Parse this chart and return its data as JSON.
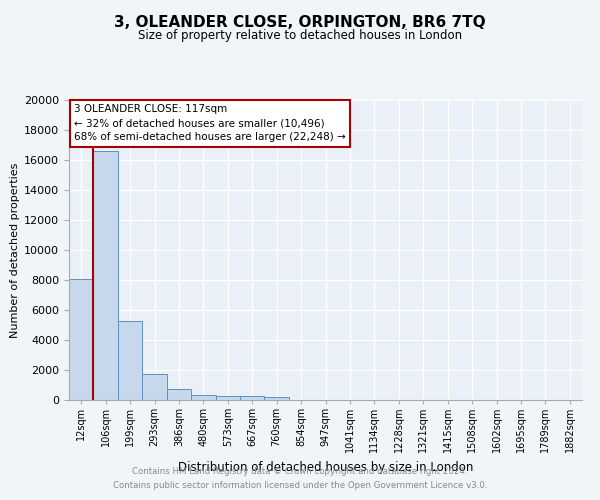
{
  "title": "3, OLEANDER CLOSE, ORPINGTON, BR6 7TQ",
  "subtitle": "Size of property relative to detached houses in London",
  "xlabel": "Distribution of detached houses by size in London",
  "ylabel": "Number of detached properties",
  "footer_line1": "Contains HM Land Registry data © Crown copyright and database right 2024.",
  "footer_line2": "Contains public sector information licensed under the Open Government Licence v3.0.",
  "bar_color": "#c8d8ec",
  "bar_edge_color": "#6090c0",
  "annotation_text_line1": "3 OLEANDER CLOSE: 117sqm",
  "annotation_text_line2": "← 32% of detached houses are smaller (10,496)",
  "annotation_text_line3": "68% of semi-detached houses are larger (22,248) →",
  "property_line_color": "#aa0000",
  "annotation_box_edge_color": "#aa0000",
  "annotation_box_face_color": "#ffffff",
  "categories": [
    "12sqm",
    "106sqm",
    "199sqm",
    "293sqm",
    "386sqm",
    "480sqm",
    "573sqm",
    "667sqm",
    "760sqm",
    "854sqm",
    "947sqm",
    "1041sqm",
    "1134sqm",
    "1228sqm",
    "1321sqm",
    "1415sqm",
    "1508sqm",
    "1602sqm",
    "1695sqm",
    "1789sqm",
    "1882sqm"
  ],
  "values": [
    8050,
    16600,
    5300,
    1750,
    750,
    350,
    300,
    250,
    200,
    0,
    0,
    0,
    0,
    0,
    0,
    0,
    0,
    0,
    0,
    0,
    0
  ],
  "ylim": [
    0,
    20000
  ],
  "yticks": [
    0,
    2000,
    4000,
    6000,
    8000,
    10000,
    12000,
    14000,
    16000,
    18000,
    20000
  ],
  "property_bar_index": 1,
  "fig_bg_color": "#f2f5f8",
  "plot_bg_color": "#eaf0f8"
}
